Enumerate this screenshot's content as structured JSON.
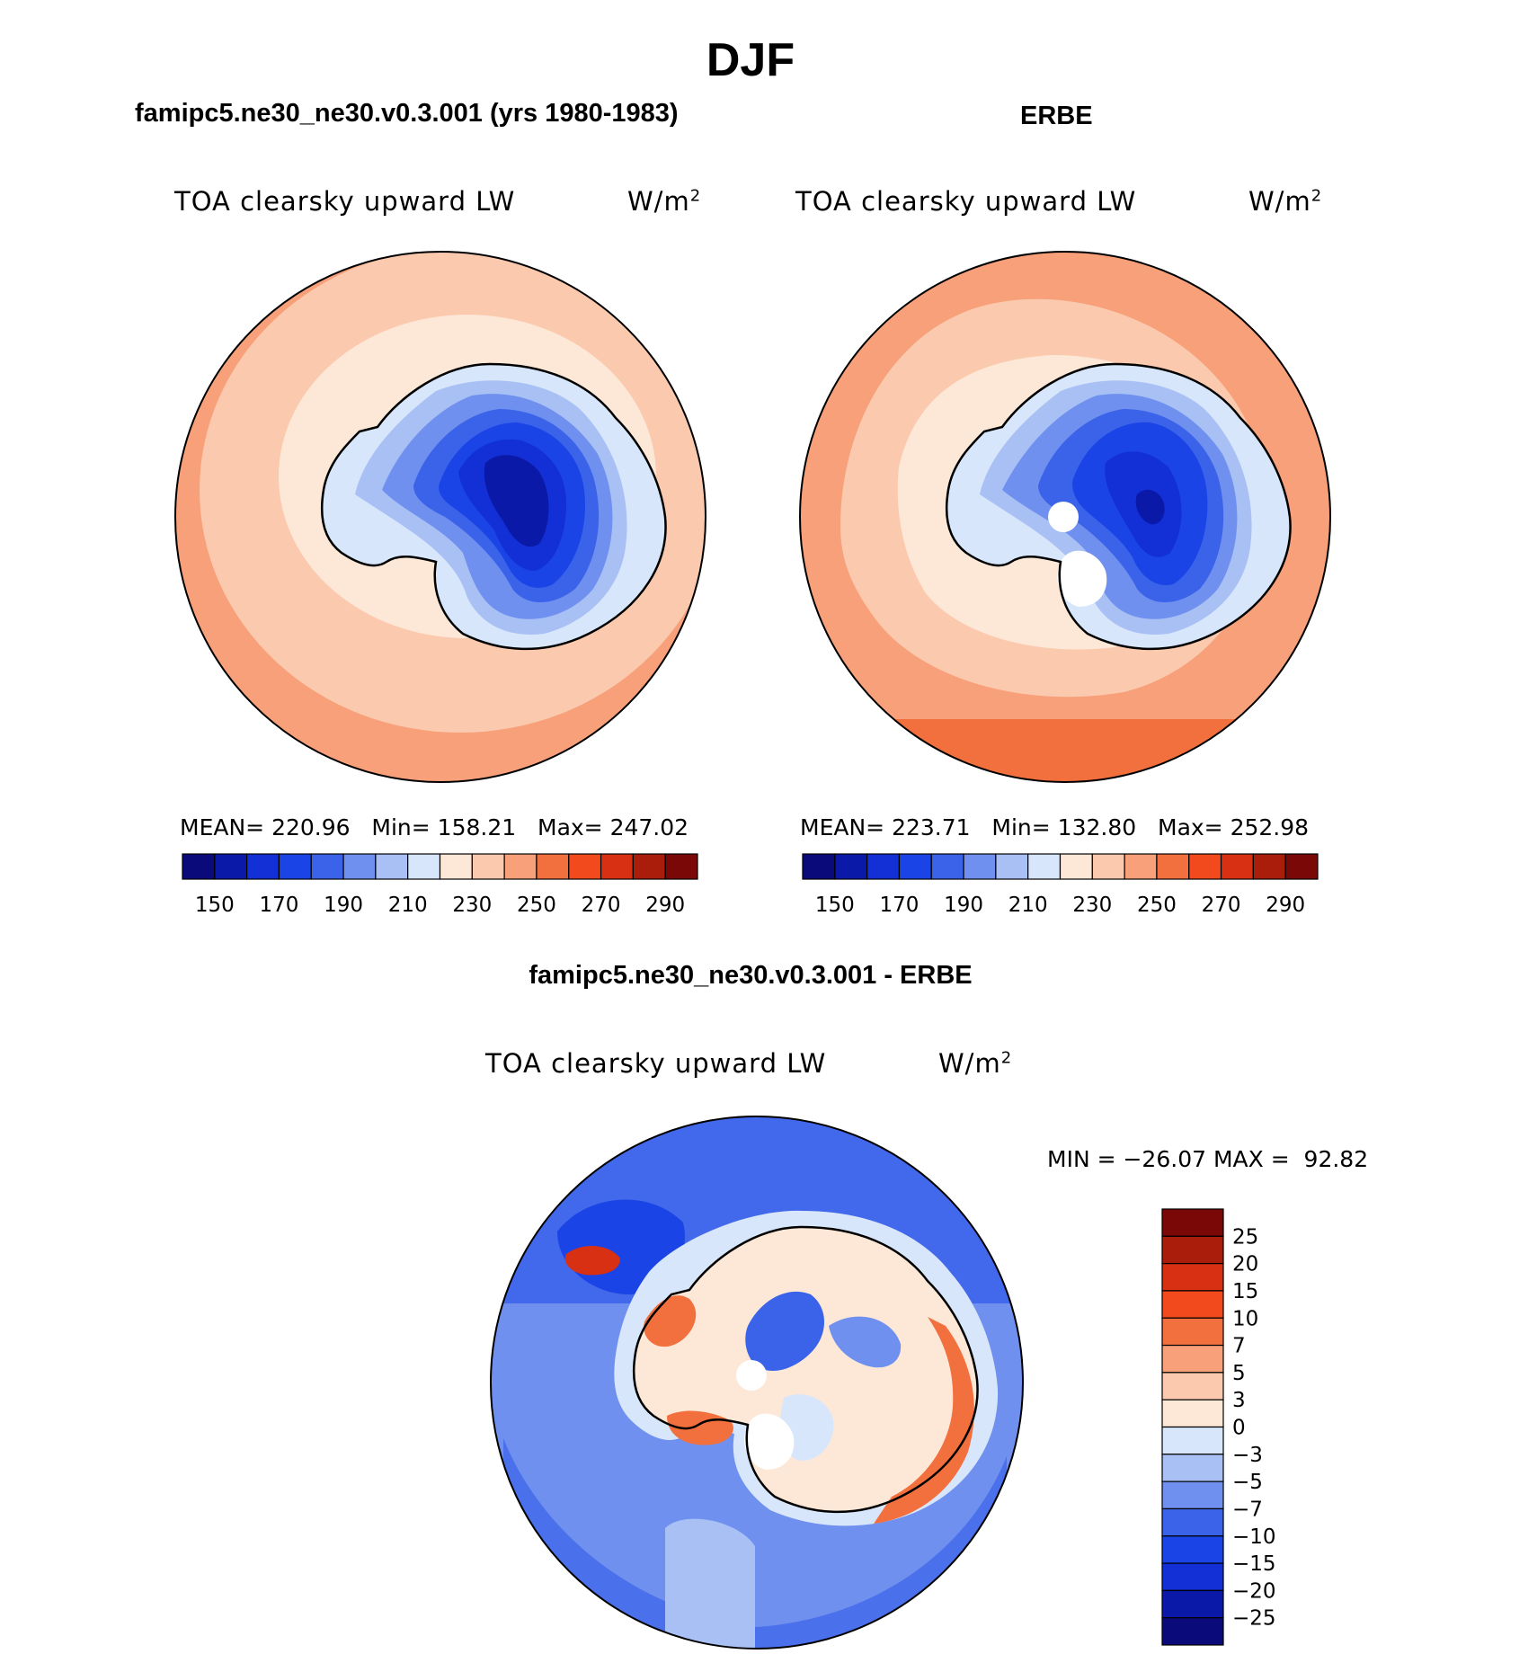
{
  "page": {
    "season": "DJF",
    "test_title": "famipc5.ne30_ne30.v0.3.001 (yrs 1980-1983)",
    "obs_title": "ERBE",
    "diff_title": "famipc5.ne30_ne30.v0.3.001 - ERBE"
  },
  "panels": [
    {
      "variable": "TOA clearsky upward LW",
      "units_base": "W/m",
      "units_exp": "2",
      "stats": {
        "mean_label": "MEAN=",
        "mean": "220.96",
        "min_label": "Min=",
        "min": "158.21",
        "max_label": "Max=",
        "max": "247.02"
      }
    },
    {
      "variable": "TOA clearsky upward LW",
      "units_base": "W/m",
      "units_exp": "2",
      "stats": {
        "mean_label": "MEAN=",
        "mean": "223.71",
        "min_label": "Min=",
        "min": "132.80",
        "max_label": "Max=",
        "max": "252.98"
      }
    },
    {
      "variable": "TOA clearsky upward LW",
      "units_base": "W/m",
      "units_exp": "2",
      "stats": {
        "minmax": "MIN = −26.07 MAX =  92.82"
      }
    }
  ],
  "colorbar_abs": {
    "colors": [
      "#0a0a7a",
      "#0b19a8",
      "#1230d6",
      "#1a44e6",
      "#3b63ea",
      "#6f90ee",
      "#a9c0f5",
      "#d8e6fb",
      "#fde8d8",
      "#fbc9ae",
      "#f7a07a",
      "#f2703e",
      "#f24a1c",
      "#d83012",
      "#aa1d0b",
      "#7a0806"
    ],
    "ticks": [
      "150",
      "170",
      "190",
      "210",
      "230",
      "250",
      "270",
      "290"
    ]
  },
  "colorbar_diff": {
    "colors": [
      "#0a0a7a",
      "#0b19a8",
      "#1230d6",
      "#1a44e6",
      "#3b63ea",
      "#6f90ee",
      "#a9c0f5",
      "#d8e6fb",
      "#fde8d8",
      "#fbc9ae",
      "#f7a07a",
      "#f2703e",
      "#f24a1c",
      "#d83012",
      "#aa1d0b",
      "#7a0806"
    ],
    "ticks": [
      "25",
      "20",
      "15",
      "10",
      "7",
      "5",
      "3",
      "0",
      "−3",
      "−5",
      "−7",
      "−10",
      "−15",
      "−20",
      "−25"
    ]
  }
}
